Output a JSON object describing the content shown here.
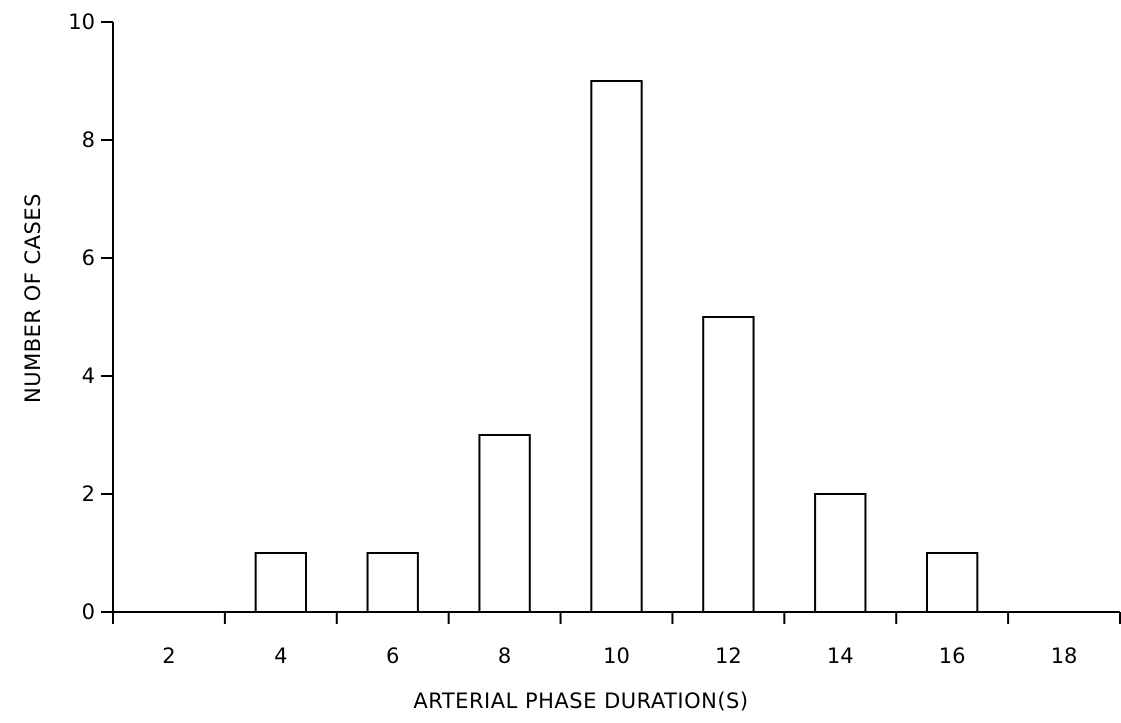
{
  "chart_data": {
    "type": "bar",
    "title": "",
    "xlabel": "ARTERIAL PHASE DURATION(S)",
    "ylabel": "NUMBER OF CASES",
    "categories": [
      "2",
      "4",
      "6",
      "8",
      "10",
      "12",
      "14",
      "16",
      "18"
    ],
    "values": [
      0,
      1,
      1,
      3,
      9,
      5,
      2,
      1,
      0
    ],
    "ylim": [
      0,
      10
    ],
    "yticks": [
      "0",
      "2",
      "4",
      "6",
      "8",
      "10"
    ],
    "grid": false,
    "legend": "none",
    "bar_fill": "#ffffff",
    "bar_stroke": "#000000"
  }
}
